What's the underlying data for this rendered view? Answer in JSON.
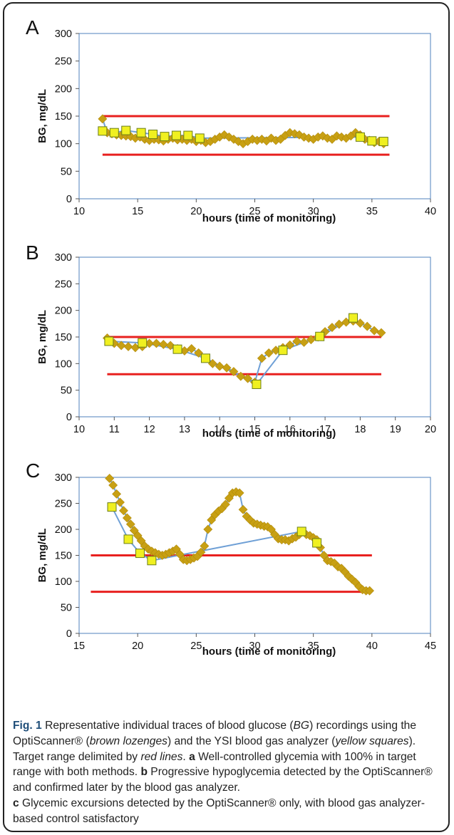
{
  "chart_data": [
    {
      "panel": "A",
      "type": "line",
      "xlabel": "hours (time of monitoring)",
      "ylabel": "BG, mg/dL",
      "xlim": [
        10,
        40
      ],
      "ylim": [
        0,
        300
      ],
      "xticks": [
        10,
        15,
        20,
        25,
        30,
        35,
        40
      ],
      "yticks": [
        0,
        50,
        100,
        150,
        200,
        250,
        300
      ],
      "grid": false,
      "target_range": {
        "lower": 80,
        "upper": 150,
        "x_start": 12,
        "x_end": 36.5,
        "color": "#e8201f"
      },
      "series": [
        {
          "marker": "diamond",
          "color": "#c8a013",
          "x": [
            12.0,
            12.4,
            12.8,
            13.2,
            13.6,
            14.0,
            14.4,
            14.8,
            15.2,
            15.6,
            16.0,
            16.4,
            16.8,
            17.2,
            17.6,
            18.0,
            18.4,
            18.8,
            19.2,
            19.6,
            20.0,
            20.4,
            20.8,
            21.2,
            21.6,
            22.0,
            22.4,
            22.8,
            23.2,
            23.6,
            24.0,
            24.4,
            24.8,
            25.2,
            25.6,
            26.0,
            26.4,
            26.8,
            27.2,
            27.6,
            28.0,
            28.4,
            28.8,
            29.2,
            29.6,
            30.0,
            30.4,
            30.8,
            31.2,
            31.6,
            32.0,
            32.4,
            32.8,
            33.2,
            33.6,
            34.0,
            34.4,
            34.8,
            35.2,
            35.6,
            36.0
          ],
          "y": [
            145,
            120,
            118,
            116,
            115,
            114,
            113,
            110,
            112,
            108,
            106,
            108,
            107,
            105,
            108,
            110,
            107,
            108,
            106,
            108,
            104,
            106,
            102,
            104,
            108,
            112,
            116,
            112,
            108,
            104,
            100,
            104,
            108,
            106,
            108,
            105,
            110,
            106,
            108,
            115,
            120,
            118,
            116,
            112,
            110,
            108,
            112,
            114,
            110,
            108,
            114,
            112,
            110,
            114,
            120,
            116,
            108,
            106,
            102,
            104,
            100
          ]
        },
        {
          "marker": "square",
          "color": "#f0f020",
          "x": [
            12.0,
            13.0,
            14.0,
            15.3,
            16.3,
            17.3,
            18.3,
            19.3,
            20.3,
            34.0,
            35.0,
            36.0
          ],
          "y": [
            123,
            120,
            124,
            120,
            117,
            113,
            115,
            115,
            110,
            112,
            105,
            104
          ]
        }
      ]
    },
    {
      "panel": "B",
      "type": "line",
      "xlabel": "hours (time of monitoring)",
      "ylabel": "BG, mg/dL",
      "xlim": [
        10,
        20
      ],
      "ylim": [
        0,
        300
      ],
      "xticks": [
        10,
        11,
        12,
        13,
        14,
        15,
        16,
        17,
        18,
        19,
        20
      ],
      "yticks": [
        0,
        50,
        100,
        150,
        200,
        250,
        300
      ],
      "grid": false,
      "target_range": {
        "lower": 80,
        "upper": 150,
        "x_start": 10.8,
        "x_end": 18.6,
        "color": "#e8201f"
      },
      "series": [
        {
          "marker": "diamond",
          "color": "#c8a013",
          "x": [
            10.8,
            11.0,
            11.2,
            11.4,
            11.6,
            11.8,
            12.0,
            12.2,
            12.4,
            12.6,
            12.8,
            13.0,
            13.2,
            13.4,
            13.6,
            13.8,
            14.0,
            14.2,
            14.4,
            14.6,
            14.8,
            15.0,
            15.2,
            15.4,
            15.6,
            15.8,
            16.0,
            16.2,
            16.4,
            16.6,
            16.8,
            17.0,
            17.2,
            17.4,
            17.6,
            17.8,
            18.0,
            18.2,
            18.4,
            18.6
          ],
          "y": [
            148,
            138,
            134,
            132,
            130,
            132,
            138,
            138,
            136,
            134,
            128,
            124,
            128,
            120,
            110,
            100,
            95,
            92,
            85,
            76,
            72,
            65,
            110,
            120,
            125,
            130,
            135,
            142,
            140,
            145,
            150,
            160,
            168,
            174,
            178,
            180,
            176,
            170,
            162,
            158
          ]
        },
        {
          "marker": "square",
          "color": "#f0f020",
          "x": [
            10.85,
            11.8,
            12.8,
            13.6,
            15.05,
            15.8,
            16.85,
            17.8
          ],
          "y": [
            142,
            139,
            127,
            110,
            61,
            125,
            151,
            186
          ]
        }
      ]
    },
    {
      "panel": "C",
      "type": "line",
      "xlabel": "hours (time of monitoring)",
      "ylabel": "BG, mg/dL",
      "xlim": [
        15,
        45
      ],
      "ylim": [
        0,
        300
      ],
      "xticks": [
        15,
        20,
        25,
        30,
        35,
        40,
        45
      ],
      "yticks": [
        0,
        50,
        100,
        150,
        200,
        250,
        300
      ],
      "grid": false,
      "target_range": {
        "lower": 80,
        "upper": 150,
        "x_start": 16,
        "x_end": 40,
        "color": "#e8201f"
      },
      "series": [
        {
          "marker": "diamond",
          "color": "#c8a013",
          "x": [
            17.6,
            17.9,
            18.2,
            18.5,
            18.8,
            19.1,
            19.4,
            19.7,
            20.0,
            20.3,
            20.6,
            20.9,
            21.2,
            21.5,
            21.8,
            22.1,
            22.4,
            22.7,
            23.0,
            23.3,
            23.6,
            23.9,
            24.2,
            24.5,
            24.8,
            25.1,
            25.4,
            25.7,
            26.0,
            26.3,
            26.6,
            26.9,
            27.2,
            27.5,
            27.8,
            28.1,
            28.4,
            28.7,
            29.0,
            29.3,
            29.6,
            29.9,
            30.2,
            30.5,
            30.8,
            31.1,
            31.4,
            31.7,
            32.0,
            32.3,
            32.6,
            32.9,
            33.2,
            33.5,
            33.8,
            34.1,
            34.4,
            34.7,
            35.0,
            35.3,
            35.6,
            35.9,
            36.2,
            36.5,
            36.8,
            37.1,
            37.4,
            37.7,
            38.0,
            38.3,
            38.6,
            38.9,
            39.2,
            39.5,
            39.8
          ],
          "y": [
            298,
            285,
            268,
            252,
            236,
            222,
            210,
            198,
            188,
            178,
            168,
            162,
            158,
            155,
            152,
            150,
            152,
            155,
            158,
            162,
            152,
            142,
            140,
            142,
            145,
            148,
            156,
            168,
            200,
            218,
            228,
            235,
            240,
            248,
            260,
            270,
            272,
            270,
            238,
            225,
            218,
            212,
            210,
            208,
            206,
            205,
            200,
            190,
            182,
            180,
            180,
            178,
            182,
            185,
            190,
            195,
            190,
            188,
            184,
            180,
            165,
            150,
            140,
            138,
            135,
            128,
            125,
            118,
            110,
            104,
            98,
            90,
            84,
            82,
            82
          ]
        },
        {
          "marker": "square",
          "color": "#f0f020",
          "x": [
            17.8,
            19.2,
            20.2,
            21.2,
            34.0,
            35.3
          ],
          "y": [
            243,
            181,
            154,
            140,
            196,
            174
          ]
        }
      ]
    }
  ],
  "caption": {
    "fig_label": "Fig. 1",
    "p1": " Representative individual traces of blood glucose (",
    "p2": "BG",
    "p3": ") recordings using the OptiScanner® (",
    "p4": "brown lozenges",
    "p5": ") and the YSI blood gas analyzer (",
    "p6": "yellow squares",
    "p7": "). Target range delimited by ",
    "p8": "red lines",
    "p9": ". ",
    "a_label": "a",
    "a_text": " Well-controlled glycemia with 100% in target range with both methods. ",
    "b_label": "b",
    "b_text": " Progressive hypoglycemia detected by the OptiScanner® and confirmed later by the blood gas analyzer.",
    "c_label": "c",
    "c_text": " Glycemic excursions detected by the OptiScanner® only, with blood gas analyzer-based control satisfactory"
  }
}
